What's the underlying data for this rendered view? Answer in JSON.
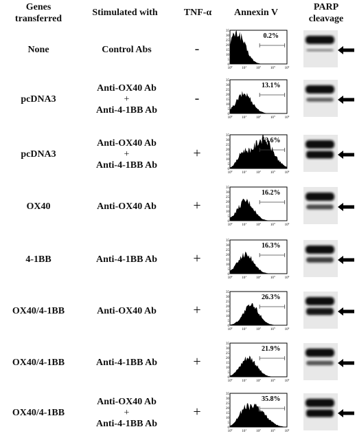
{
  "headers": {
    "genes": [
      "Genes",
      "transferred"
    ],
    "stim": "Stimulated with",
    "tnf": "TNF-α",
    "annexin": "Annexin V",
    "parp": [
      "PARP",
      "cleavage"
    ]
  },
  "hist_axis": {
    "y_ticks": [
      "0",
      "5",
      "10",
      "15",
      "20",
      "25",
      "30",
      "35"
    ],
    "x_ticks_base": [
      "10",
      "10",
      "10",
      "10",
      "10"
    ],
    "x_ticks_exp": [
      "0",
      "1",
      "2",
      "3",
      "4"
    ]
  },
  "rows": [
    {
      "gene": "None",
      "stim": [
        "Control Abs"
      ],
      "tnf": "-",
      "pct": "0.2%",
      "peak": 0.5,
      "cleave": 0.05
    },
    {
      "gene": "pcDNA3",
      "stim": [
        "Anti-OX40 Ab",
        "+",
        "Anti-4-1BB Ab"
      ],
      "tnf": "-",
      "pct": "13.1%",
      "peak": 1.0,
      "cleave": 0.35
    },
    {
      "gene": "pcDNA3",
      "stim": [
        "Anti-OX40 Ab",
        "+",
        "Anti-4-1BB Ab"
      ],
      "tnf": "+",
      "pct": "53.6%",
      "peak": 2.3,
      "cleave": 1.0
    },
    {
      "gene": "OX40",
      "stim": [
        "Anti-OX40 Ab"
      ],
      "tnf": "+",
      "pct": "16.2%",
      "peak": 1.1,
      "cleave": 0.5
    },
    {
      "gene": "4-1BB",
      "stim": [
        "Anti-4-1BB Ab"
      ],
      "tnf": "+",
      "pct": "16.3%",
      "peak": 1.1,
      "cleave": 0.6
    },
    {
      "gene": "OX40/4-1BB",
      "stim": [
        "Anti-OX40 Ab"
      ],
      "tnf": "+",
      "pct": "26.3%",
      "peak": 1.5,
      "cleave": 0.9
    },
    {
      "gene": "OX40/4-1BB",
      "stim": [
        "Anti-4-1BB Ab"
      ],
      "tnf": "+",
      "pct": "21.9%",
      "peak": 1.3,
      "cleave": 0.45
    },
    {
      "gene": "OX40/4-1BB",
      "stim": [
        "Anti-OX40 Ab",
        "+",
        "Anti-4-1BB Ab"
      ],
      "tnf": "+",
      "pct": "35.8%",
      "peak": 1.8,
      "cleave": 1.0
    }
  ]
}
